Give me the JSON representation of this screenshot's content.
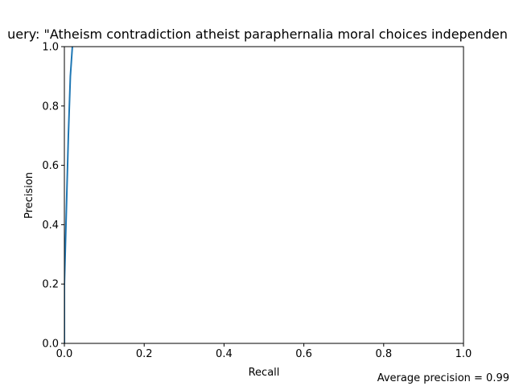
{
  "chart_data": {
    "type": "line",
    "title": "uery: \"Atheism contradiction atheist paraphernalia moral choices independen",
    "xlabel": "Recall",
    "ylabel": "Precision",
    "xlim": [
      0,
      1
    ],
    "ylim": [
      0,
      1
    ],
    "xticks": [
      "0.0",
      "0.2",
      "0.4",
      "0.6",
      "0.8",
      "1.0"
    ],
    "yticks": [
      "0.0",
      "0.2",
      "0.4",
      "0.6",
      "0.8",
      "1.0"
    ],
    "grid": false,
    "series": [
      {
        "color": "#1f77b4",
        "x": [
          0.0,
          0.0,
          0.005,
          0.01,
          0.015,
          0.02
        ],
        "y": [
          0.0,
          0.2,
          0.45,
          0.7,
          0.9,
          1.0
        ]
      }
    ],
    "annotation": "Average precision = 0.99"
  }
}
